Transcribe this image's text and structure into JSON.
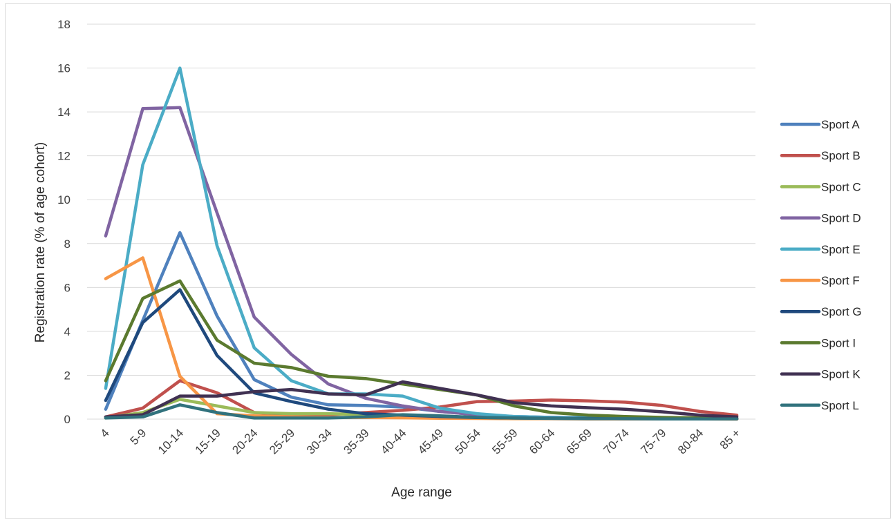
{
  "chart_data": {
    "type": "line",
    "title": "",
    "xlabel": "Age range",
    "ylabel": "Registration rate (% of age cohort)",
    "ylim": [
      0,
      18
    ],
    "yticks": [
      0,
      2,
      4,
      6,
      8,
      10,
      12,
      14,
      16,
      18
    ],
    "grid": true,
    "legend_position": "right",
    "categories": [
      "4",
      "5-9",
      "10-14",
      "15-19",
      "20-24",
      "25-29",
      "30-34",
      "35-39",
      "40-44",
      "45-49",
      "50-54",
      "55-59",
      "60-64",
      "65-69",
      "70-74",
      "75-79",
      "80-84",
      "85 +"
    ],
    "series": [
      {
        "name": "Sport A",
        "color": "#4f81bd",
        "values": [
          0.45,
          4.5,
          8.5,
          4.7,
          1.8,
          1.0,
          0.65,
          0.62,
          0.55,
          0.35,
          0.2,
          0.1,
          0.08,
          0.06,
          0.05,
          0.04,
          0.03,
          0.02
        ]
      },
      {
        "name": "Sport B",
        "color": "#c0504d",
        "values": [
          0.1,
          0.5,
          1.75,
          1.2,
          0.3,
          0.2,
          0.2,
          0.3,
          0.4,
          0.55,
          0.8,
          0.82,
          0.87,
          0.83,
          0.77,
          0.62,
          0.35,
          0.18
        ]
      },
      {
        "name": "Sport C",
        "color": "#9bbb59",
        "values": [
          0.05,
          0.3,
          0.9,
          0.6,
          0.3,
          0.25,
          0.25,
          0.2,
          0.18,
          0.12,
          0.07,
          0.05,
          0.04,
          0.03,
          0.02,
          0.02,
          0.02,
          0.01
        ]
      },
      {
        "name": "Sport D",
        "color": "#8064a2",
        "values": [
          8.35,
          14.15,
          14.2,
          9.4,
          4.65,
          2.95,
          1.6,
          0.95,
          0.6,
          0.35,
          0.2,
          0.12,
          0.08,
          0.06,
          0.05,
          0.04,
          0.03,
          0.02
        ]
      },
      {
        "name": "Sport E",
        "color": "#4bacc6",
        "values": [
          1.4,
          11.6,
          16.0,
          7.9,
          3.25,
          1.75,
          1.15,
          1.15,
          1.05,
          0.5,
          0.25,
          0.12,
          0.08,
          0.06,
          0.05,
          0.04,
          0.03,
          0.02
        ]
      },
      {
        "name": "Sport F",
        "color": "#f79646",
        "values": [
          6.4,
          7.35,
          1.95,
          0.25,
          0.15,
          0.1,
          0.08,
          0.07,
          0.06,
          0.04,
          0.03,
          0.02,
          0.02,
          0.01,
          0.01,
          0.01,
          0.01,
          0.0
        ]
      },
      {
        "name": "Sport G",
        "color": "#1f497d",
        "values": [
          0.85,
          4.4,
          5.9,
          2.9,
          1.2,
          0.8,
          0.45,
          0.25,
          0.18,
          0.12,
          0.07,
          0.05,
          0.04,
          0.03,
          0.02,
          0.02,
          0.01,
          0.01
        ]
      },
      {
        "name": "Sport I",
        "color": "#5b7a2f",
        "values": [
          1.75,
          5.5,
          6.3,
          3.6,
          2.55,
          2.35,
          1.95,
          1.85,
          1.6,
          1.35,
          1.1,
          0.6,
          0.3,
          0.18,
          0.12,
          0.08,
          0.05,
          0.03
        ]
      },
      {
        "name": "Sport K",
        "color": "#403152",
        "values": [
          0.1,
          0.2,
          1.05,
          1.05,
          1.25,
          1.35,
          1.15,
          1.1,
          1.7,
          1.4,
          1.1,
          0.75,
          0.6,
          0.52,
          0.45,
          0.33,
          0.18,
          0.1
        ]
      },
      {
        "name": "Sport L",
        "color": "#31727d",
        "values": [
          0.05,
          0.1,
          0.65,
          0.3,
          0.05,
          0.05,
          0.05,
          0.1,
          0.2,
          0.15,
          0.08,
          0.05,
          0.03,
          0.02,
          0.02,
          0.01,
          0.01,
          0.01
        ]
      }
    ]
  }
}
